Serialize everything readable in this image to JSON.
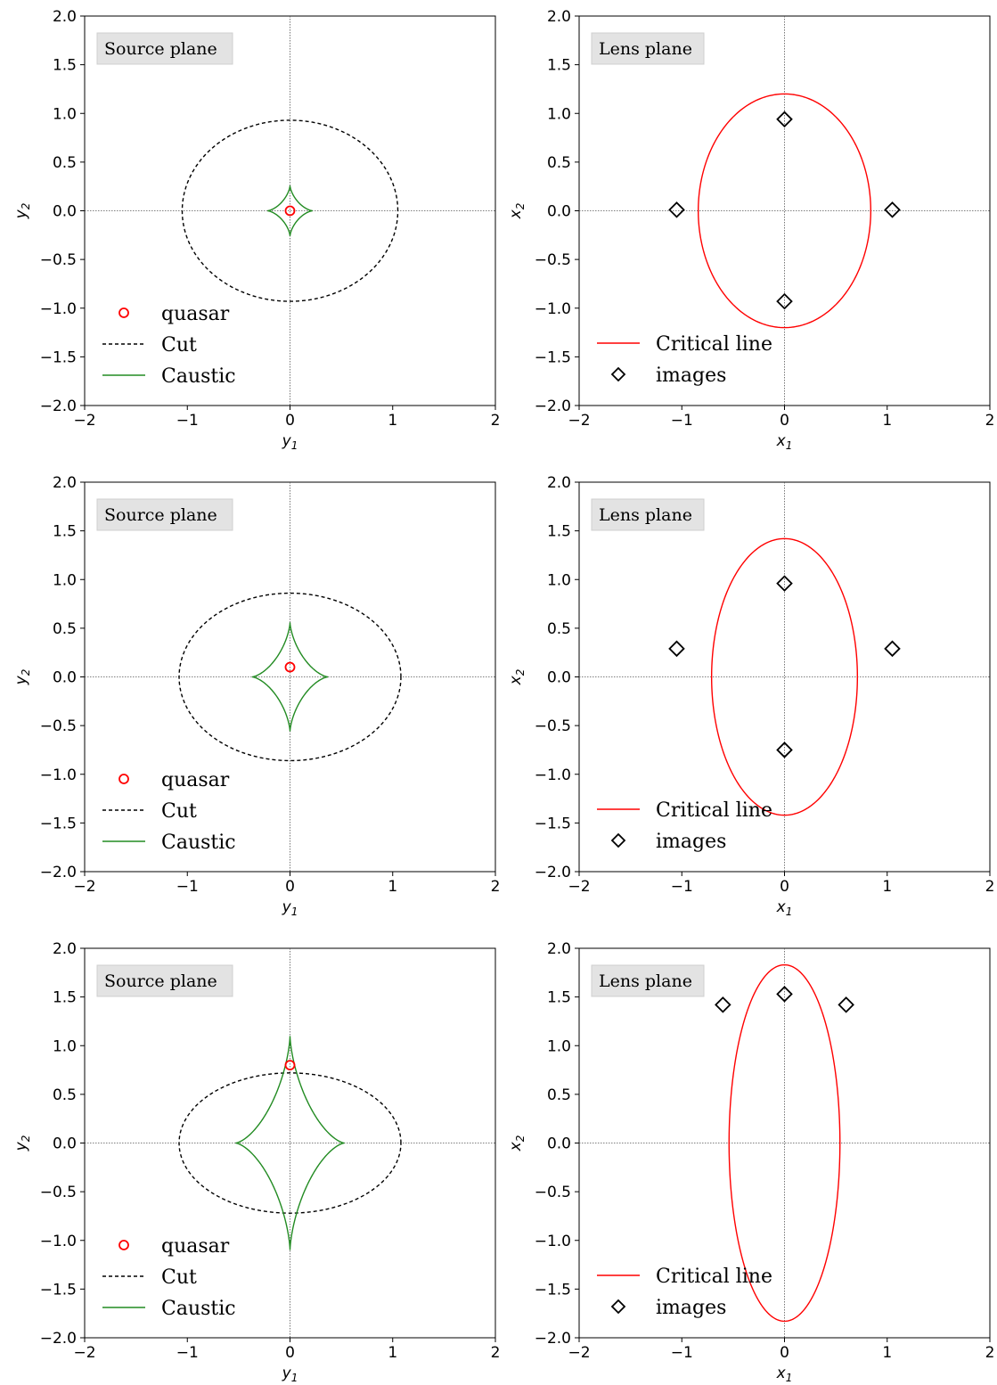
{
  "chart_data": [
    {
      "type": "scatter",
      "panel": "source",
      "annotation": "Source plane",
      "xlabel": "y1",
      "ylabel": "y2",
      "xlim": [
        -2,
        2
      ],
      "ylim": [
        -2,
        2
      ],
      "xticks": [
        "−2",
        "−1",
        "0",
        "1",
        "2"
      ],
      "yticks": [
        "2.0",
        "1.5",
        "1.0",
        "0.5",
        "0.0",
        "−0.5",
        "−1.0",
        "−1.5",
        "−2.0"
      ],
      "legend": [
        "quasar",
        "Cut",
        "Caustic"
      ],
      "legend_position": "lower-left",
      "quasar": {
        "x": 0,
        "y": 0.0
      },
      "cut": {
        "a": 1.05,
        "b": 0.93
      },
      "caustic": {
        "a": 0.22,
        "b": 0.26
      }
    },
    {
      "type": "scatter",
      "panel": "lens",
      "annotation": "Lens plane",
      "xlabel": "x1",
      "ylabel": "x2",
      "xlim": [
        -2,
        2
      ],
      "ylim": [
        -2,
        2
      ],
      "xticks": [
        "−2",
        "−1",
        "0",
        "1",
        "2"
      ],
      "yticks": [
        "2.0",
        "1.5",
        "1.0",
        "0.5",
        "0.0",
        "−0.5",
        "−1.0",
        "−1.5",
        "−2.0"
      ],
      "legend": [
        "Critical line",
        "images"
      ],
      "legend_position": "lower-left",
      "critical_line": {
        "a": 0.84,
        "b": 1.2
      },
      "images": [
        {
          "x": 0,
          "y": 0.94
        },
        {
          "x": -1.05,
          "y": 0.01
        },
        {
          "x": 1.05,
          "y": 0.01
        },
        {
          "x": 0,
          "y": -0.93
        }
      ]
    },
    {
      "type": "scatter",
      "panel": "source",
      "annotation": "Source plane",
      "xlabel": "y1",
      "ylabel": "y2",
      "xlim": [
        -2,
        2
      ],
      "ylim": [
        -2,
        2
      ],
      "xticks": [
        "−2",
        "−1",
        "0",
        "1",
        "2"
      ],
      "yticks": [
        "2.0",
        "1.5",
        "1.0",
        "0.5",
        "0.0",
        "−0.5",
        "−1.0",
        "−1.5",
        "−2.0"
      ],
      "legend": [
        "quasar",
        "Cut",
        "Caustic"
      ],
      "legend_position": "lower-left",
      "quasar": {
        "x": 0,
        "y": 0.1
      },
      "cut": {
        "a": 1.08,
        "b": 0.86
      },
      "caustic": {
        "a": 0.37,
        "b": 0.56
      }
    },
    {
      "type": "scatter",
      "panel": "lens",
      "annotation": "Lens plane",
      "xlabel": "x1",
      "ylabel": "x2",
      "xlim": [
        -2,
        2
      ],
      "ylim": [
        -2,
        2
      ],
      "xticks": [
        "−2",
        "−1",
        "0",
        "1",
        "2"
      ],
      "yticks": [
        "2.0",
        "1.5",
        "1.0",
        "0.5",
        "0.0",
        "−0.5",
        "−1.0",
        "−1.5",
        "−2.0"
      ],
      "legend": [
        "Critical line",
        "images"
      ],
      "legend_position": "lower-left",
      "critical_line": {
        "a": 0.71,
        "b": 1.42
      },
      "images": [
        {
          "x": 0,
          "y": 0.96
        },
        {
          "x": -1.05,
          "y": 0.29
        },
        {
          "x": 1.05,
          "y": 0.29
        },
        {
          "x": 0,
          "y": -0.75
        }
      ]
    },
    {
      "type": "scatter",
      "panel": "source",
      "annotation": "Source plane",
      "xlabel": "y1",
      "ylabel": "y2",
      "xlim": [
        -2,
        2
      ],
      "ylim": [
        -2,
        2
      ],
      "xticks": [
        "−2",
        "−1",
        "0",
        "1",
        "2"
      ],
      "yticks": [
        "2.0",
        "1.5",
        "1.0",
        "0.5",
        "0.0",
        "−0.5",
        "−1.0",
        "−1.5",
        "−2.0"
      ],
      "legend": [
        "quasar",
        "Cut",
        "Caustic"
      ],
      "legend_position": "lower-left",
      "quasar": {
        "x": 0,
        "y": 0.8
      },
      "cut": {
        "a": 1.08,
        "b": 0.72
      },
      "caustic": {
        "a": 0.53,
        "b": 1.1
      }
    },
    {
      "type": "scatter",
      "panel": "lens",
      "annotation": "Lens plane",
      "xlabel": "x1",
      "ylabel": "x2",
      "xlim": [
        -2,
        2
      ],
      "ylim": [
        -2,
        2
      ],
      "xticks": [
        "−2",
        "−1",
        "0",
        "1",
        "2"
      ],
      "yticks": [
        "2.0",
        "1.5",
        "1.0",
        "0.5",
        "0.0",
        "−0.5",
        "−1.0",
        "−1.5",
        "−2.0"
      ],
      "legend": [
        "Critical line",
        "images"
      ],
      "legend_position": "lower-left",
      "critical_line": {
        "a": 0.54,
        "b": 1.83
      },
      "images": [
        {
          "x": -0.6,
          "y": 1.42
        },
        {
          "x": 0,
          "y": 1.53
        },
        {
          "x": 0.6,
          "y": 1.42
        }
      ]
    }
  ],
  "colors": {
    "quasar": "#ff0000",
    "cut": "#000000",
    "caustic": "#228b22",
    "critical_line": "#ff0000",
    "images": "#000000",
    "guide": "#555555",
    "annotation_box": "#e3e3e3"
  }
}
